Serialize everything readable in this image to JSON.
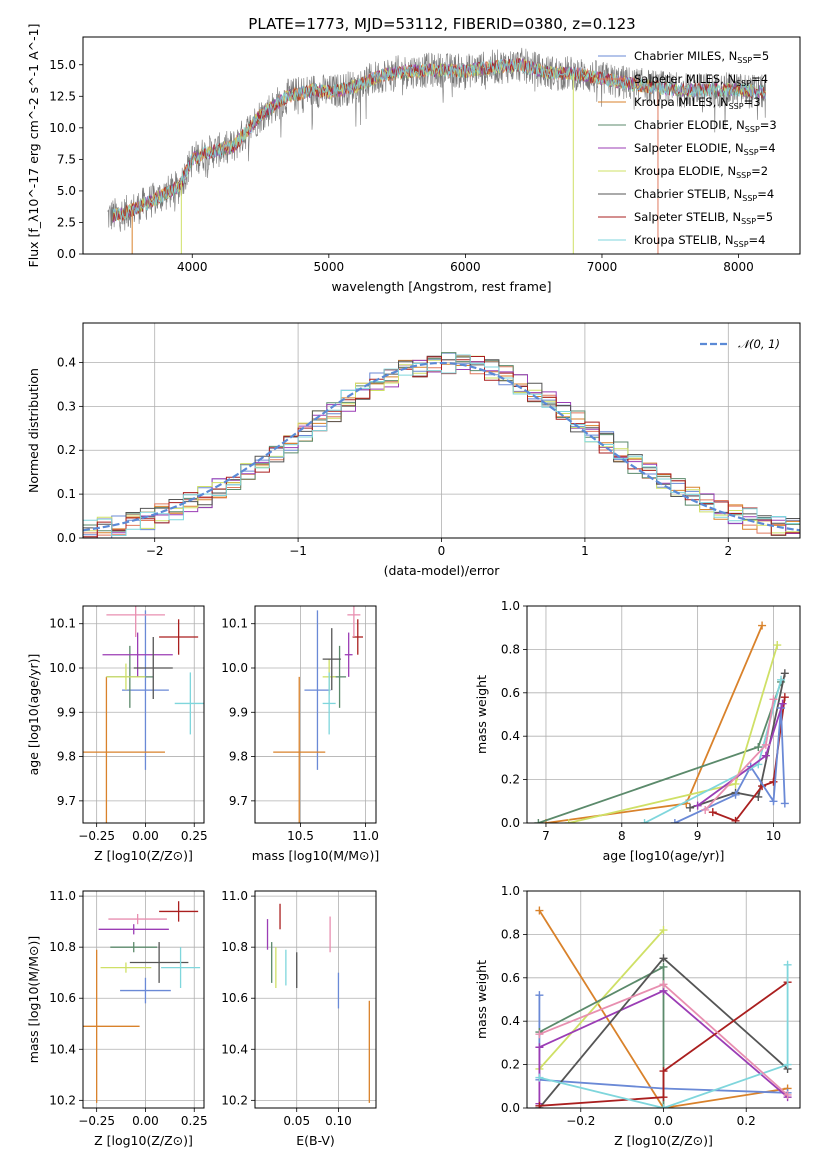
{
  "page": {
    "title": "PLATE=1773, MJD=53112, FIBERID=0380, z=0.123"
  },
  "colors": {
    "Chabrier MILES": "#6a89d6",
    "Salpeter MILES": "#e07a5f",
    "Kroupa MILES": "#d9822b",
    "Chabrier ELODIE": "#5b8a6b",
    "Salpeter ELODIE": "#9b3db5",
    "Kroupa ELODIE": "#cfe066",
    "Chabrier STELIB": "#555555",
    "Salpeter STELIB": "#aa1f1f",
    "Kroupa STELIB": "#7fd6dc",
    "pink": "#e88fb0",
    "gauss": "#5b8ad6"
  },
  "chart_data": [
    {
      "id": "spectrum",
      "type": "line",
      "xlabel": "wavelength [Angstrom, rest frame]",
      "ylabel": "Flux [f_λ10^-17 erg cm^-2 s^-1 A^-1]",
      "xlim": [
        3200,
        8450
      ],
      "ylim": [
        0,
        17.2
      ],
      "xticks": [
        4000,
        5000,
        6000,
        7000,
        8000
      ],
      "yticks": [
        0.0,
        2.5,
        5.0,
        7.5,
        10.0,
        12.5,
        15.0
      ],
      "ytick_labels": [
        "0.0",
        "2.5",
        "5.0",
        "7.5",
        "10.0",
        "12.5",
        "15.0"
      ],
      "legend": [
        {
          "name": "Chabrier MILES",
          "nssp": "5"
        },
        {
          "name": "Salpeter MILES",
          "nssp": "4"
        },
        {
          "name": "Kroupa MILES",
          "nssp": "3"
        },
        {
          "name": "Chabrier ELODIE",
          "nssp": "3"
        },
        {
          "name": "Salpeter ELODIE",
          "nssp": "4"
        },
        {
          "name": "Kroupa ELODIE",
          "nssp": "2"
        },
        {
          "name": "Chabrier STELIB",
          "nssp": "4"
        },
        {
          "name": "Salpeter STELIB",
          "nssp": "5"
        },
        {
          "name": "Kroupa STELIB",
          "nssp": "4"
        }
      ],
      "continuum": [
        [
          3380,
          3.0
        ],
        [
          3500,
          3.2
        ],
        [
          3700,
          4.2
        ],
        [
          3900,
          5.3
        ],
        [
          4000,
          7.5
        ],
        [
          4100,
          8.0
        ],
        [
          4300,
          8.5
        ],
        [
          4500,
          11.0
        ],
        [
          4700,
          12.5
        ],
        [
          4900,
          13.0
        ],
        [
          5000,
          12.8
        ],
        [
          5200,
          13.3
        ],
        [
          5400,
          14.2
        ],
        [
          5600,
          14.5
        ],
        [
          5800,
          14.6
        ],
        [
          6000,
          14.5
        ],
        [
          6200,
          14.8
        ],
        [
          6400,
          15.0
        ],
        [
          6600,
          14.4
        ],
        [
          6800,
          14.3
        ],
        [
          7000,
          13.9
        ],
        [
          7200,
          13.5
        ],
        [
          7400,
          13.2
        ],
        [
          7600,
          13.0
        ],
        [
          8000,
          13.0
        ],
        [
          8200,
          12.8
        ]
      ]
    },
    {
      "id": "residuals",
      "type": "step",
      "xlabel": "(data-model)/error",
      "ylabel": "Normed distribution",
      "xlim": [
        -2.5,
        2.5
      ],
      "ylim": [
        0,
        0.49
      ],
      "xticks": [
        -2,
        -1,
        0,
        1,
        2
      ],
      "xtick_labels": [
        "−2",
        "−1",
        "0",
        "1",
        "2"
      ],
      "yticks": [
        0.0,
        0.1,
        0.2,
        0.3,
        0.4
      ],
      "ytick_labels": [
        "0.0",
        "0.1",
        "0.2",
        "0.3",
        "0.4"
      ],
      "gauss_label": "𝒩(0, 1)"
    },
    {
      "id": "age_vs_Z",
      "type": "errorbar",
      "xlabel": "Z [log10(Z/Z⊙)]",
      "ylabel": "age [log10(age/yr)]",
      "xlim": [
        -0.32,
        0.3
      ],
      "ylim": [
        9.65,
        10.14
      ],
      "xticks": [
        -0.25,
        0.0,
        0.25
      ],
      "xtick_labels": [
        "−0.25",
        "0.00",
        "0.25"
      ],
      "yticks": [
        9.7,
        9.8,
        9.9,
        10.0,
        10.1
      ],
      "ytick_labels": [
        "9.7",
        "9.8",
        "9.9",
        "10.0",
        "10.1"
      ],
      "points": [
        {
          "c": "Chabrier MILES",
          "x": 0.0,
          "xe": 0.12,
          "y": 9.95,
          "ye": 0.18
        },
        {
          "c": "Kroupa MILES",
          "x": -0.2,
          "xe": 0.3,
          "y": 9.81,
          "ye": 0.17
        },
        {
          "c": "Chabrier ELODIE",
          "x": -0.08,
          "xe": 0.12,
          "y": 9.98,
          "ye": 0.07
        },
        {
          "c": "Salpeter ELODIE",
          "x": -0.04,
          "xe": 0.18,
          "y": 10.03,
          "ye": 0.05
        },
        {
          "c": "Kroupa ELODIE",
          "x": -0.1,
          "xe": 0.1,
          "y": 9.98,
          "ye": 0.03
        },
        {
          "c": "Chabrier STELIB",
          "x": 0.04,
          "xe": 0.1,
          "y": 10.0,
          "ye": 0.07
        },
        {
          "c": "Salpeter STELIB",
          "x": 0.17,
          "xe": 0.1,
          "y": 10.07,
          "ye": 0.04
        },
        {
          "c": "Kroupa STELIB",
          "x": 0.23,
          "xe": 0.08,
          "y": 9.92,
          "ye": 0.07
        },
        {
          "c": "pink",
          "x": -0.05,
          "xe": 0.15,
          "y": 10.12,
          "ye": 0.05
        }
      ]
    },
    {
      "id": "age_vs_mass",
      "type": "errorbar",
      "xlabel": "mass [log10(M/M⊙)]",
      "ylabel": "",
      "xlim": [
        10.15,
        11.08
      ],
      "ylim": [
        9.65,
        10.14
      ],
      "xticks": [
        10.5,
        11.0
      ],
      "xtick_labels": [
        "10.5",
        "11.0"
      ],
      "yticks": [
        9.7,
        9.8,
        9.9,
        10.0,
        10.1
      ],
      "ytick_labels": [
        "9.7",
        "9.8",
        "9.9",
        "10.0",
        "10.1"
      ],
      "points": [
        {
          "c": "Chabrier MILES",
          "x": 10.63,
          "xe": 0.1,
          "y": 9.95,
          "ye": 0.18
        },
        {
          "c": "Kroupa MILES",
          "x": 10.49,
          "xe": 0.2,
          "y": 9.81,
          "ye": 0.17
        },
        {
          "c": "Chabrier ELODIE",
          "x": 10.8,
          "xe": 0.05,
          "y": 9.98,
          "ye": 0.07
        },
        {
          "c": "Kroupa ELODIE",
          "x": 10.72,
          "xe": 0.05,
          "y": 9.98,
          "ye": 0.04
        },
        {
          "c": "Salpeter ELODIE",
          "x": 10.87,
          "xe": 0.03,
          "y": 10.03,
          "ye": 0.05
        },
        {
          "c": "Chabrier STELIB",
          "x": 10.74,
          "xe": 0.07,
          "y": 10.02,
          "ye": 0.07
        },
        {
          "c": "Salpeter STELIB",
          "x": 10.94,
          "xe": 0.04,
          "y": 10.07,
          "ye": 0.04
        },
        {
          "c": "Kroupa STELIB",
          "x": 10.72,
          "xe": 0.05,
          "y": 9.92,
          "ye": 0.07
        },
        {
          "c": "pink",
          "x": 10.91,
          "xe": 0.05,
          "y": 10.12,
          "ye": 0.05
        }
      ]
    },
    {
      "id": "weight_vs_age",
      "type": "line",
      "xlabel": "age [log10(age/yr)]",
      "ylabel": "mass weight",
      "xlim": [
        6.75,
        10.35
      ],
      "ylim": [
        0,
        1.0
      ],
      "xticks": [
        7,
        8,
        9,
        10
      ],
      "xtick_labels": [
        "7",
        "8",
        "9",
        "10"
      ],
      "yticks": [
        0.0,
        0.2,
        0.4,
        0.6,
        0.8,
        1.0
      ],
      "ytick_labels": [
        "0.0",
        "0.2",
        "0.4",
        "0.6",
        "0.8",
        "1.0"
      ],
      "series": [
        {
          "c": "Kroupa MILES",
          "x": [
            7.0,
            8.85,
            9.85
          ],
          "y": [
            0.0,
            0.09,
            0.91
          ]
        },
        {
          "c": "Chabrier ELODIE",
          "x": [
            6.9,
            9.8,
            10.1
          ],
          "y": [
            0.0,
            0.35,
            0.65
          ]
        },
        {
          "c": "Kroupa ELODIE",
          "x": [
            7.3,
            9.5,
            10.05
          ],
          "y": [
            0.0,
            0.18,
            0.82
          ]
        },
        {
          "c": "Chabrier STELIB",
          "x": [
            8.9,
            9.5,
            9.8,
            10.15
          ],
          "y": [
            0.07,
            0.14,
            0.12,
            0.69
          ]
        },
        {
          "c": "Salpeter STELIB",
          "x": [
            9.2,
            9.5,
            9.85,
            10.0,
            10.15
          ],
          "y": [
            0.05,
            0.01,
            0.17,
            0.19,
            0.58
          ]
        },
        {
          "c": "Chabrier MILES",
          "x": [
            8.7,
            9.5,
            9.7,
            10.0,
            10.1,
            10.15
          ],
          "y": [
            0.0,
            0.13,
            0.26,
            0.1,
            0.53,
            0.09
          ]
        },
        {
          "c": "Kroupa STELIB",
          "x": [
            8.3,
            9.8,
            10.1
          ],
          "y": [
            0.0,
            0.27,
            0.66
          ]
        },
        {
          "c": "Salpeter ELODIE",
          "x": [
            9.0,
            9.9,
            10.12
          ],
          "y": [
            0.08,
            0.31,
            0.55
          ]
        },
        {
          "c": "pink",
          "x": [
            9.1,
            9.9,
            10.0
          ],
          "y": [
            0.06,
            0.36,
            0.57
          ]
        }
      ]
    },
    {
      "id": "mass_vs_Z",
      "type": "errorbar",
      "xlabel": "Z [log10(Z/Z⊙)]",
      "ylabel": "mass [log10(M/M⊙)]",
      "xlim": [
        -0.32,
        0.3
      ],
      "ylim": [
        10.17,
        11.02
      ],
      "xticks": [
        -0.25,
        0.0,
        0.25
      ],
      "xtick_labels": [
        "−0.25",
        "0.00",
        "0.25"
      ],
      "yticks": [
        10.2,
        10.4,
        10.6,
        10.8,
        11.0
      ],
      "ytick_labels": [
        "10.2",
        "10.4",
        "10.6",
        "10.8",
        "11.0"
      ],
      "points": [
        {
          "c": "Chabrier MILES",
          "x": 0.0,
          "xe": 0.13,
          "y": 10.63,
          "ye": 0.05
        },
        {
          "c": "Kroupa MILES",
          "x": -0.25,
          "xe": 0.22,
          "y": 10.49,
          "ye": 0.3
        },
        {
          "c": "Chabrier ELODIE",
          "x": -0.06,
          "xe": 0.12,
          "y": 10.8,
          "ye": 0.02
        },
        {
          "c": "Salpeter ELODIE",
          "x": -0.06,
          "xe": 0.18,
          "y": 10.87,
          "ye": 0.02
        },
        {
          "c": "Kroupa ELODIE",
          "x": -0.1,
          "xe": 0.13,
          "y": 10.72,
          "ye": 0.02
        },
        {
          "c": "Chabrier STELIB",
          "x": 0.07,
          "xe": 0.15,
          "y": 10.74,
          "ye": 0.08
        },
        {
          "c": "Salpeter STELIB",
          "x": 0.17,
          "xe": 0.1,
          "y": 10.94,
          "ye": 0.04
        },
        {
          "c": "Kroupa STELIB",
          "x": 0.18,
          "xe": 0.1,
          "y": 10.72,
          "ye": 0.08
        },
        {
          "c": "pink",
          "x": -0.04,
          "xe": 0.15,
          "y": 10.91,
          "ye": 0.02
        }
      ]
    },
    {
      "id": "mass_vs_ebv",
      "type": "errorbar",
      "xlabel": "E(B-V)",
      "ylabel": "",
      "xlim": [
        0.0,
        0.145
      ],
      "ylim": [
        10.17,
        11.02
      ],
      "xticks": [
        0.05,
        0.1
      ],
      "xtick_labels": [
        "0.05",
        "0.10"
      ],
      "yticks": [
        10.2,
        10.4,
        10.6,
        10.8,
        11.0
      ],
      "ytick_labels": [
        "10.2",
        "10.4",
        "10.6",
        "10.8",
        "11.0"
      ],
      "points": [
        {
          "c": "Chabrier MILES",
          "x": 0.1,
          "xe": 0,
          "y": 10.63,
          "ye": 0.07
        },
        {
          "c": "Kroupa MILES",
          "x": 0.137,
          "xe": 0,
          "y": 10.39,
          "ye": 0.2
        },
        {
          "c": "Chabrier ELODIE",
          "x": 0.02,
          "xe": 0,
          "y": 10.74,
          "ye": 0.08
        },
        {
          "c": "Salpeter ELODIE",
          "x": 0.015,
          "xe": 0,
          "y": 10.85,
          "ye": 0.06
        },
        {
          "c": "Kroupa ELODIE",
          "x": 0.025,
          "xe": 0,
          "y": 10.72,
          "ye": 0.08
        },
        {
          "c": "Chabrier STELIB",
          "x": 0.05,
          "xe": 0,
          "y": 10.71,
          "ye": 0.07
        },
        {
          "c": "Salpeter STELIB",
          "x": 0.03,
          "xe": 0,
          "y": 10.92,
          "ye": 0.05
        },
        {
          "c": "Kroupa STELIB",
          "x": 0.037,
          "xe": 0,
          "y": 10.72,
          "ye": 0.07
        },
        {
          "c": "pink",
          "x": 0.09,
          "xe": 0,
          "y": 10.85,
          "ye": 0.07
        }
      ]
    },
    {
      "id": "weight_vs_Z",
      "type": "line",
      "xlabel": "Z [log10(Z/Z⊙)]",
      "ylabel": "mass weight",
      "xlim": [
        -0.33,
        0.33
      ],
      "ylim": [
        0,
        1.0
      ],
      "xticks": [
        -0.2,
        0.0,
        0.2
      ],
      "xtick_labels": [
        "−0.2",
        "0.0",
        "0.2"
      ],
      "yticks": [
        0.0,
        0.2,
        0.4,
        0.6,
        0.8,
        1.0
      ],
      "ytick_labels": [
        "0.0",
        "0.2",
        "0.4",
        "0.6",
        "0.8",
        "1.0"
      ],
      "series": [
        {
          "c": "Kroupa MILES",
          "x": [
            -0.3,
            0.0,
            0.3
          ],
          "y": [
            0.91,
            0.0,
            0.09
          ]
        },
        {
          "c": "Chabrier MILES",
          "x": [
            -0.3,
            -0.3,
            0.0,
            0.3
          ],
          "y": [
            0.52,
            0.13,
            0.09,
            0.07
          ]
        },
        {
          "c": "Kroupa ELODIE",
          "x": [
            -0.3,
            0.0
          ],
          "y": [
            0.18,
            0.82
          ]
        },
        {
          "c": "Chabrier ELODIE",
          "x": [
            -0.3,
            0.0,
            0.0
          ],
          "y": [
            0.35,
            0.65,
            0.0
          ]
        },
        {
          "c": "Salpeter ELODIE",
          "x": [
            -0.3,
            -0.3,
            0.0,
            0.3
          ],
          "y": [
            0.02,
            0.28,
            0.54,
            0.05
          ]
        },
        {
          "c": "Chabrier STELIB",
          "x": [
            -0.3,
            0.0,
            0.3
          ],
          "y": [
            0.0,
            0.69,
            0.18
          ]
        },
        {
          "c": "Salpeter STELIB",
          "x": [
            -0.3,
            0.0,
            0.0,
            0.3
          ],
          "y": [
            0.01,
            0.05,
            0.17,
            0.58
          ]
        },
        {
          "c": "Kroupa STELIB",
          "x": [
            -0.3,
            0.0,
            0.3,
            0.3
          ],
          "y": [
            0.14,
            0.0,
            0.2,
            0.66
          ]
        },
        {
          "c": "pink",
          "x": [
            -0.3,
            0.0,
            0.3
          ],
          "y": [
            0.34,
            0.57,
            0.06
          ]
        }
      ]
    }
  ]
}
